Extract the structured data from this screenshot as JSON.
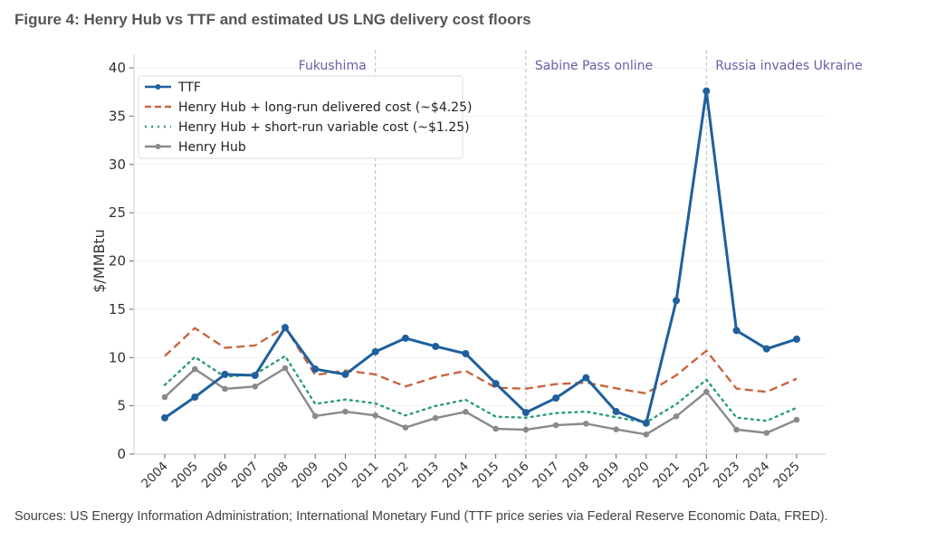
{
  "title": "Figure 4: Henry Hub vs TTF and estimated US LNG delivery cost floors",
  "source": "Sources: US Energy Information Administration; International Monetary Fund (TTF price series via Federal Reserve Economic Data, FRED).",
  "chart_data": {
    "type": "line",
    "title": "",
    "xlabel": "",
    "ylabel": "$/MMBtu",
    "ylim": [
      0,
      41
    ],
    "yticks": [
      0,
      5,
      10,
      15,
      20,
      25,
      30,
      35,
      40
    ],
    "grid": "horizontal, faint",
    "legend": "top-left",
    "x": [
      "2004",
      "2005",
      "2006",
      "2007",
      "2008",
      "2009",
      "2010",
      "2011",
      "2012",
      "2013",
      "2014",
      "2015",
      "2016",
      "2017",
      "2018",
      "2019",
      "2020",
      "2021",
      "2022",
      "2023",
      "2024",
      "2025"
    ],
    "series": [
      {
        "name": "TTF",
        "style": "solid-markers",
        "color": "#1f5f9e",
        "values": [
          3.75,
          5.9,
          8.25,
          8.15,
          13.1,
          8.8,
          8.25,
          10.6,
          12.0,
          11.15,
          10.4,
          7.3,
          4.3,
          5.8,
          7.9,
          4.4,
          3.2,
          15.9,
          37.6,
          12.8,
          10.9,
          11.9
        ]
      },
      {
        "name": "Henry Hub + long-run delivered cost (~$4.25)",
        "style": "dashed",
        "color": "#c9653f",
        "values": [
          10.15,
          13.05,
          11.0,
          11.25,
          13.15,
          8.19,
          8.65,
          8.25,
          7.0,
          7.98,
          8.62,
          6.87,
          6.77,
          7.24,
          7.4,
          6.81,
          6.28,
          8.16,
          10.7,
          6.78,
          6.44,
          7.8
        ]
      },
      {
        "name": "Henry Hub + short-run variable cost (~$1.25)",
        "style": "dotted",
        "color": "#2a9d78",
        "values": [
          7.15,
          10.05,
          8.0,
          8.25,
          10.15,
          5.19,
          5.65,
          5.25,
          4.0,
          4.98,
          5.62,
          3.87,
          3.77,
          4.24,
          4.4,
          3.81,
          3.28,
          5.16,
          7.7,
          3.78,
          3.44,
          4.8
        ]
      },
      {
        "name": "Henry Hub",
        "style": "solid-markers",
        "color": "#8a8a8a",
        "values": [
          5.9,
          8.8,
          6.75,
          7.0,
          8.9,
          3.94,
          4.4,
          4.0,
          2.75,
          3.73,
          4.37,
          2.62,
          2.52,
          2.99,
          3.15,
          2.56,
          2.03,
          3.91,
          6.45,
          2.53,
          2.19,
          3.55
        ]
      }
    ],
    "annotations": [
      {
        "x": "2011",
        "label": "Fukushima"
      },
      {
        "x": "2016",
        "label": "Sabine Pass online"
      },
      {
        "x": "2022",
        "label": "Russia invades Ukraine"
      }
    ]
  }
}
